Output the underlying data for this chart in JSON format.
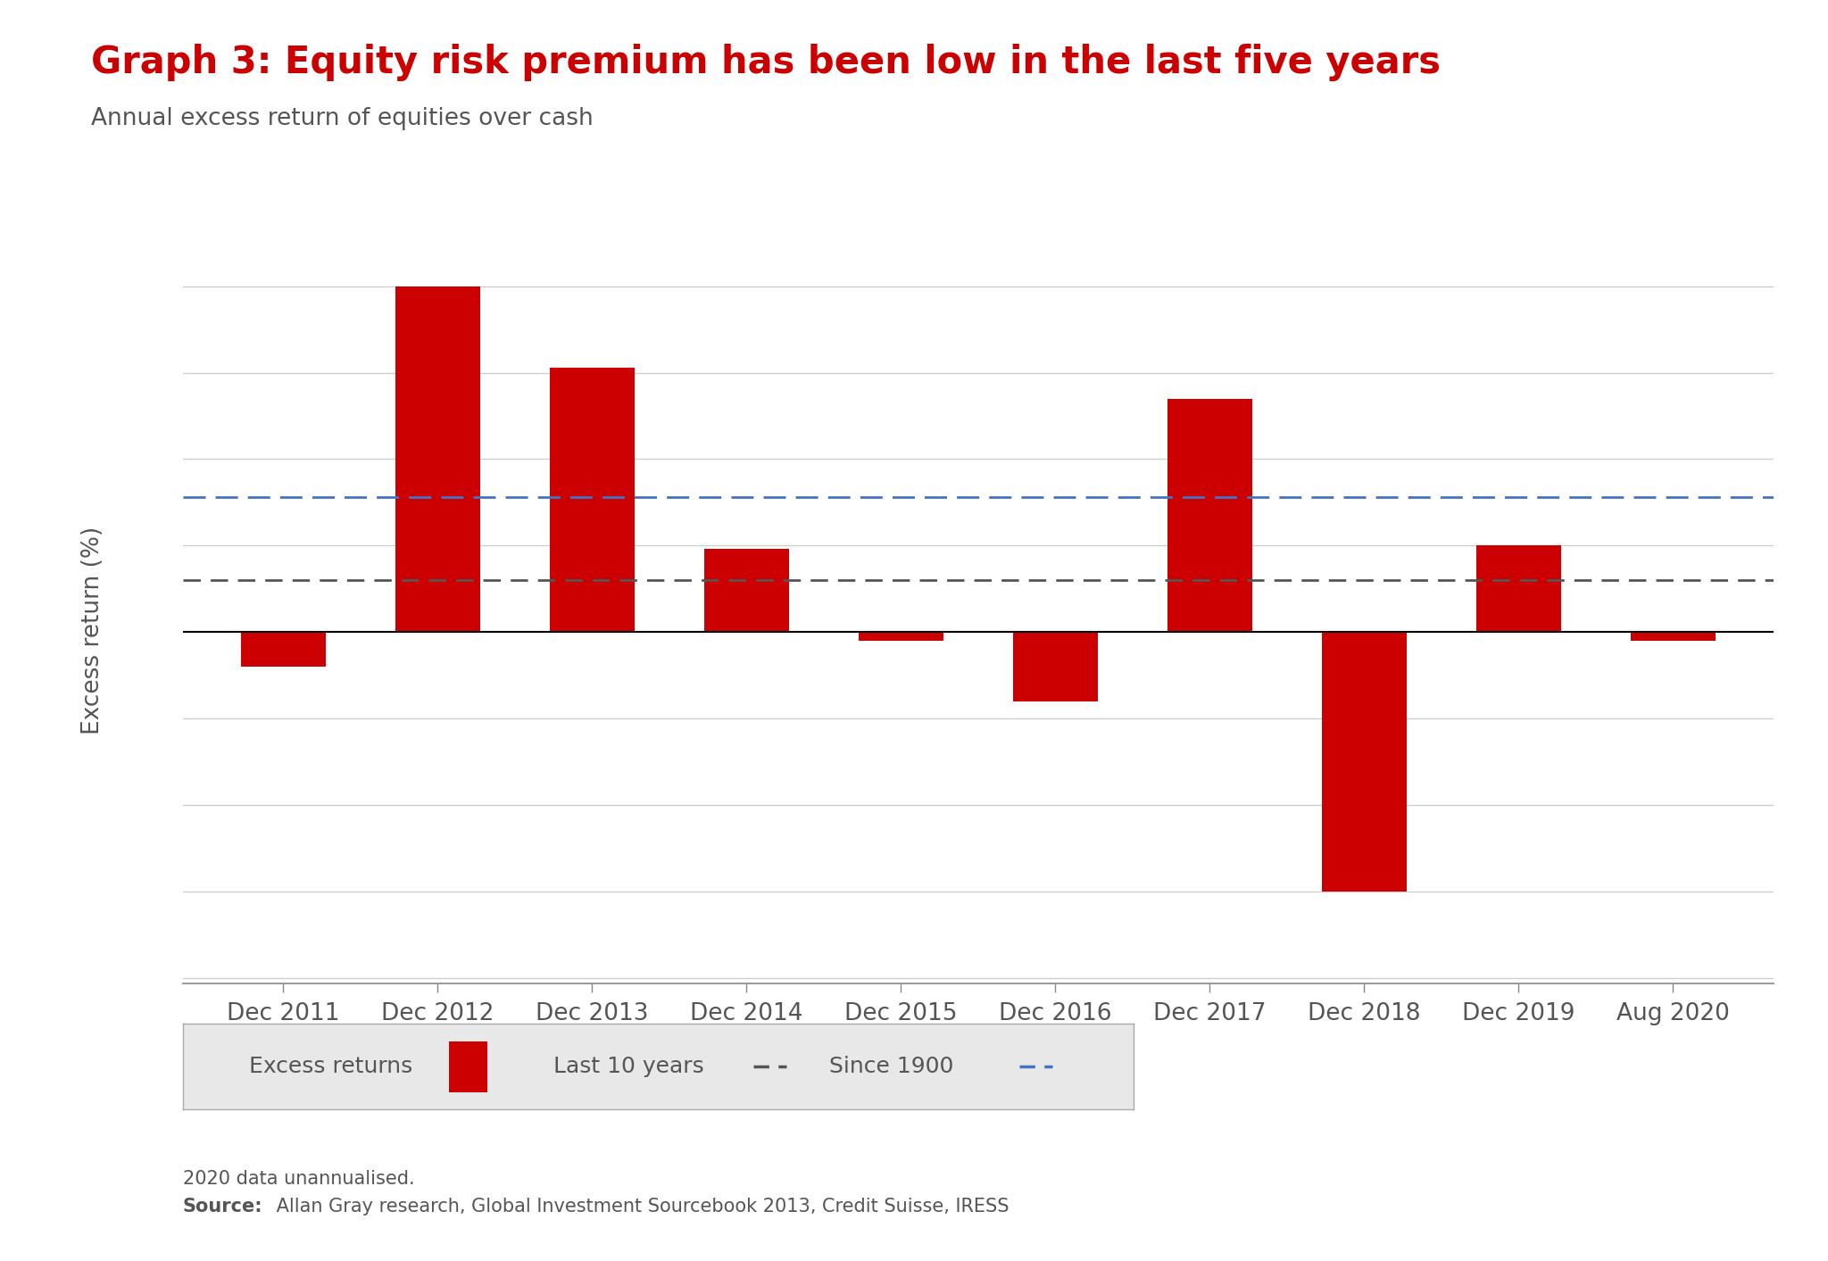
{
  "title": "Graph 3: Equity risk premium has been low in the last five years",
  "subtitle": "Annual excess return of equities over cash",
  "ylabel": "Excess return (%)",
  "categories": [
    "Dec 2011",
    "Dec 2012",
    "Dec 2013",
    "Dec 2014",
    "Dec 2015",
    "Dec 2016",
    "Dec 2017",
    "Dec 2018",
    "Dec 2019",
    "Aug 2020"
  ],
  "values": [
    -2.0,
    20.0,
    15.3,
    4.8,
    -0.5,
    -4.0,
    13.5,
    -15.0,
    5.0,
    -0.5
  ],
  "bar_color": "#cc0000",
  "last_10_years_value": 3.0,
  "since_1900_value": 7.8,
  "last_10_years_color": "#555555",
  "since_1900_color": "#4472c4",
  "ylim_min": -20,
  "ylim_max": 20,
  "yticks": [
    20,
    15,
    10,
    5,
    0,
    -5,
    -10,
    -15,
    -20
  ],
  "background_color": "#ffffff",
  "title_color": "#cc0000",
  "subtitle_color": "#555555",
  "ylabel_color": "#555555",
  "tick_label_color_positive": "#555555",
  "tick_label_color_negative": "#cc0000",
  "footnote_line1": "2020 data unannualised.",
  "footnote_line2_bold": "Source:",
  "footnote_line2_rest": " Allan Gray research, Global Investment Sourcebook 2013, Credit Suisse, IRESS",
  "legend_label1": "Excess returns",
  "legend_label2": "Last 10 years",
  "legend_label3": "Since 1900",
  "grid_color": "#cccccc",
  "legend_bg": "#e8e8e8",
  "legend_border": "#aaaaaa"
}
